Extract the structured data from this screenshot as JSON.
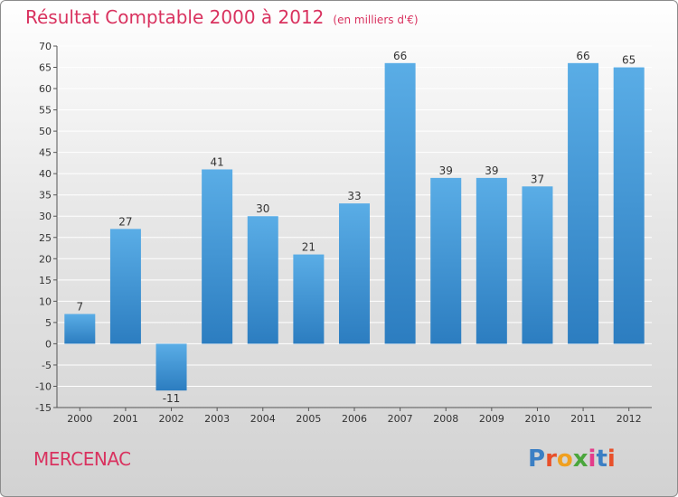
{
  "header": {
    "title": "Résultat Comptable 2000 à 2012",
    "subtitle": "(en milliers d'€)"
  },
  "commune": "MERCENAC",
  "brand": {
    "text": "Proxiti",
    "letter_colors": [
      "#3b7fc4",
      "#e8502a",
      "#f0a020",
      "#4aa63c",
      "#e33c8a",
      "#3b7fc4",
      "#e8502a"
    ]
  },
  "chart_data": {
    "type": "bar",
    "title": "Résultat Comptable 2000 à 2012",
    "unit": "(en milliers d'€)",
    "categories": [
      "2000",
      "2001",
      "2002",
      "2003",
      "2004",
      "2005",
      "2006",
      "2007",
      "2008",
      "2009",
      "2010",
      "2011",
      "2012"
    ],
    "values": [
      7,
      27,
      -11,
      41,
      30,
      21,
      33,
      66,
      39,
      39,
      37,
      66,
      65
    ],
    "value_labels": [
      "7",
      "27",
      "-11",
      "41",
      "30",
      "21",
      "33",
      "66",
      "39",
      "39",
      "37",
      "66",
      "65"
    ],
    "ylim": [
      -15,
      70
    ],
    "yticks": [
      -15,
      -10,
      -5,
      0,
      5,
      10,
      15,
      20,
      25,
      30,
      35,
      40,
      45,
      50,
      55,
      60,
      65,
      70
    ],
    "grid": true,
    "colors": {
      "bar_light": "#5aade6",
      "bar_dark": "#2c7dc0",
      "grid": "#ffffff",
      "axis": "#555555"
    }
  }
}
